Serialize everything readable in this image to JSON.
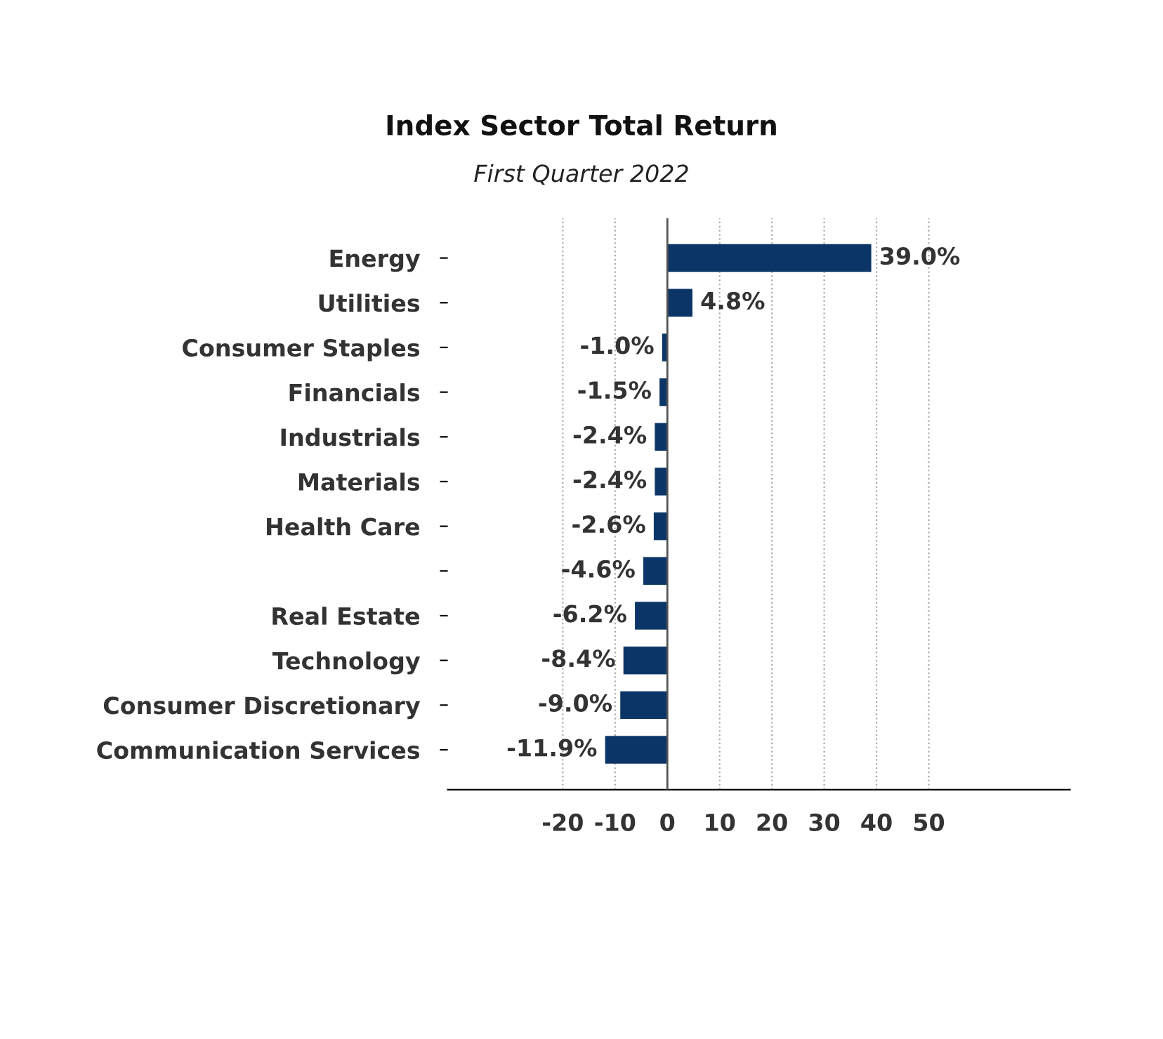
{
  "chart_data": {
    "type": "bar",
    "orientation": "horizontal",
    "title": "Index Sector Total Return",
    "subtitle": "First Quarter 2022",
    "categories": [
      "Energy",
      "Utilities",
      "Consumer Staples",
      "Financials",
      "Industrials",
      "Materials",
      "Health Care",
      null,
      "Real Estate",
      "Technology",
      "Consumer Discretionary",
      "Communication Services"
    ],
    "values": [
      39.0,
      4.8,
      -1.0,
      -1.5,
      -2.4,
      -2.4,
      -2.6,
      -4.6,
      -6.2,
      -8.4,
      -9.0,
      -11.9
    ],
    "value_labels": [
      "39.0%",
      "4.8%",
      "-1.0%",
      "-1.5%",
      "-2.4%",
      "-2.4%",
      "-2.6%",
      "-4.6%",
      "-6.2%",
      "-8.4%",
      "-9.0%",
      "-11.9%"
    ],
    "color": "#0b3566",
    "xlim": [
      -42,
      77
    ],
    "xticks": [
      -20,
      -10,
      0,
      10,
      20,
      30,
      40,
      50
    ],
    "ref_lines": [
      {
        "axis": "x",
        "value": 0,
        "color": "#555555"
      }
    ],
    "grid": "x",
    "legend": false
  }
}
